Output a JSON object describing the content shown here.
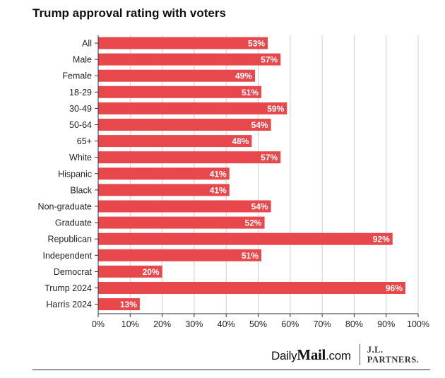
{
  "chart_data": {
    "type": "bar",
    "orientation": "horizontal",
    "title": "Trump approval rating with voters",
    "categories": [
      "All",
      "Male",
      "Female",
      "18-29",
      "30-49",
      "50-64",
      "65+",
      "White",
      "Hispanic",
      "Black",
      "Non-graduate",
      "Graduate",
      "Republican",
      "Independent",
      "Democrat",
      "Trump 2024",
      "Harris 2024"
    ],
    "values": [
      53,
      57,
      49,
      51,
      59,
      54,
      48,
      57,
      41,
      41,
      54,
      52,
      92,
      51,
      20,
      96,
      13
    ],
    "value_suffix": "%",
    "xlim": [
      0,
      100
    ],
    "xticks": [
      0,
      10,
      20,
      30,
      40,
      50,
      60,
      70,
      80,
      90,
      100
    ],
    "xtick_suffix": "%",
    "grid": "vertical",
    "bar_color": "#e8474c",
    "label_color": "#ffffff"
  },
  "footer": {
    "dm_daily": "Daily",
    "dm_mail": "Mail",
    "dm_com": ".com",
    "jl_line1": "J.L.",
    "jl_line2": "PARTNERS",
    "jl_dot": "."
  }
}
